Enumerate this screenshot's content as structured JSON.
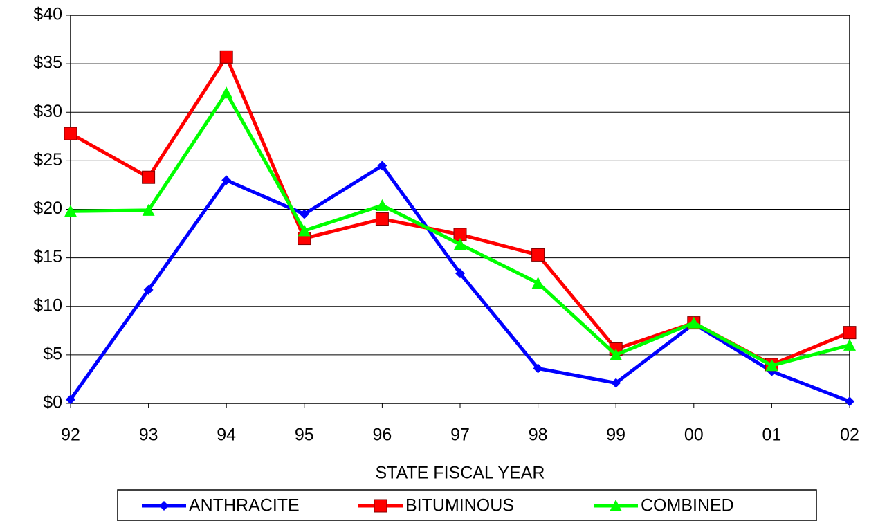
{
  "chart_data": {
    "type": "line",
    "xlabel": "STATE FISCAL YEAR",
    "categories": [
      "92",
      "93",
      "94",
      "95",
      "96",
      "97",
      "98",
      "99",
      "00",
      "01",
      "02"
    ],
    "series": [
      {
        "name": "ANTHRACITE",
        "color": "#0000ff",
        "marker": "diamond",
        "values": [
          0.4,
          11.7,
          23.0,
          19.5,
          24.5,
          13.4,
          3.6,
          2.1,
          8.2,
          3.3,
          0.2
        ]
      },
      {
        "name": "BITUMINOUS",
        "color": "#ff0000",
        "marker": "square",
        "values": [
          27.8,
          23.3,
          35.7,
          17.0,
          19.0,
          17.4,
          15.3,
          5.6,
          8.3,
          4.0,
          7.3
        ]
      },
      {
        "name": "COMBINED",
        "color": "#00ff00",
        "marker": "triangle",
        "values": [
          19.8,
          19.9,
          32.0,
          17.8,
          20.4,
          16.4,
          12.4,
          5.0,
          8.3,
          3.9,
          6.0
        ]
      }
    ],
    "ylim": [
      0,
      40
    ],
    "yticks": [
      {
        "value": 0,
        "label": "$0"
      },
      {
        "value": 5,
        "label": "$5"
      },
      {
        "value": 10,
        "label": "$10"
      },
      {
        "value": 15,
        "label": "$15"
      },
      {
        "value": 20,
        "label": "$20"
      },
      {
        "value": 25,
        "label": "$25"
      },
      {
        "value": 30,
        "label": "$30"
      },
      {
        "value": 35,
        "label": "$35"
      },
      {
        "value": 40,
        "label": "$40"
      }
    ],
    "grid": true,
    "legend": "bottom"
  }
}
